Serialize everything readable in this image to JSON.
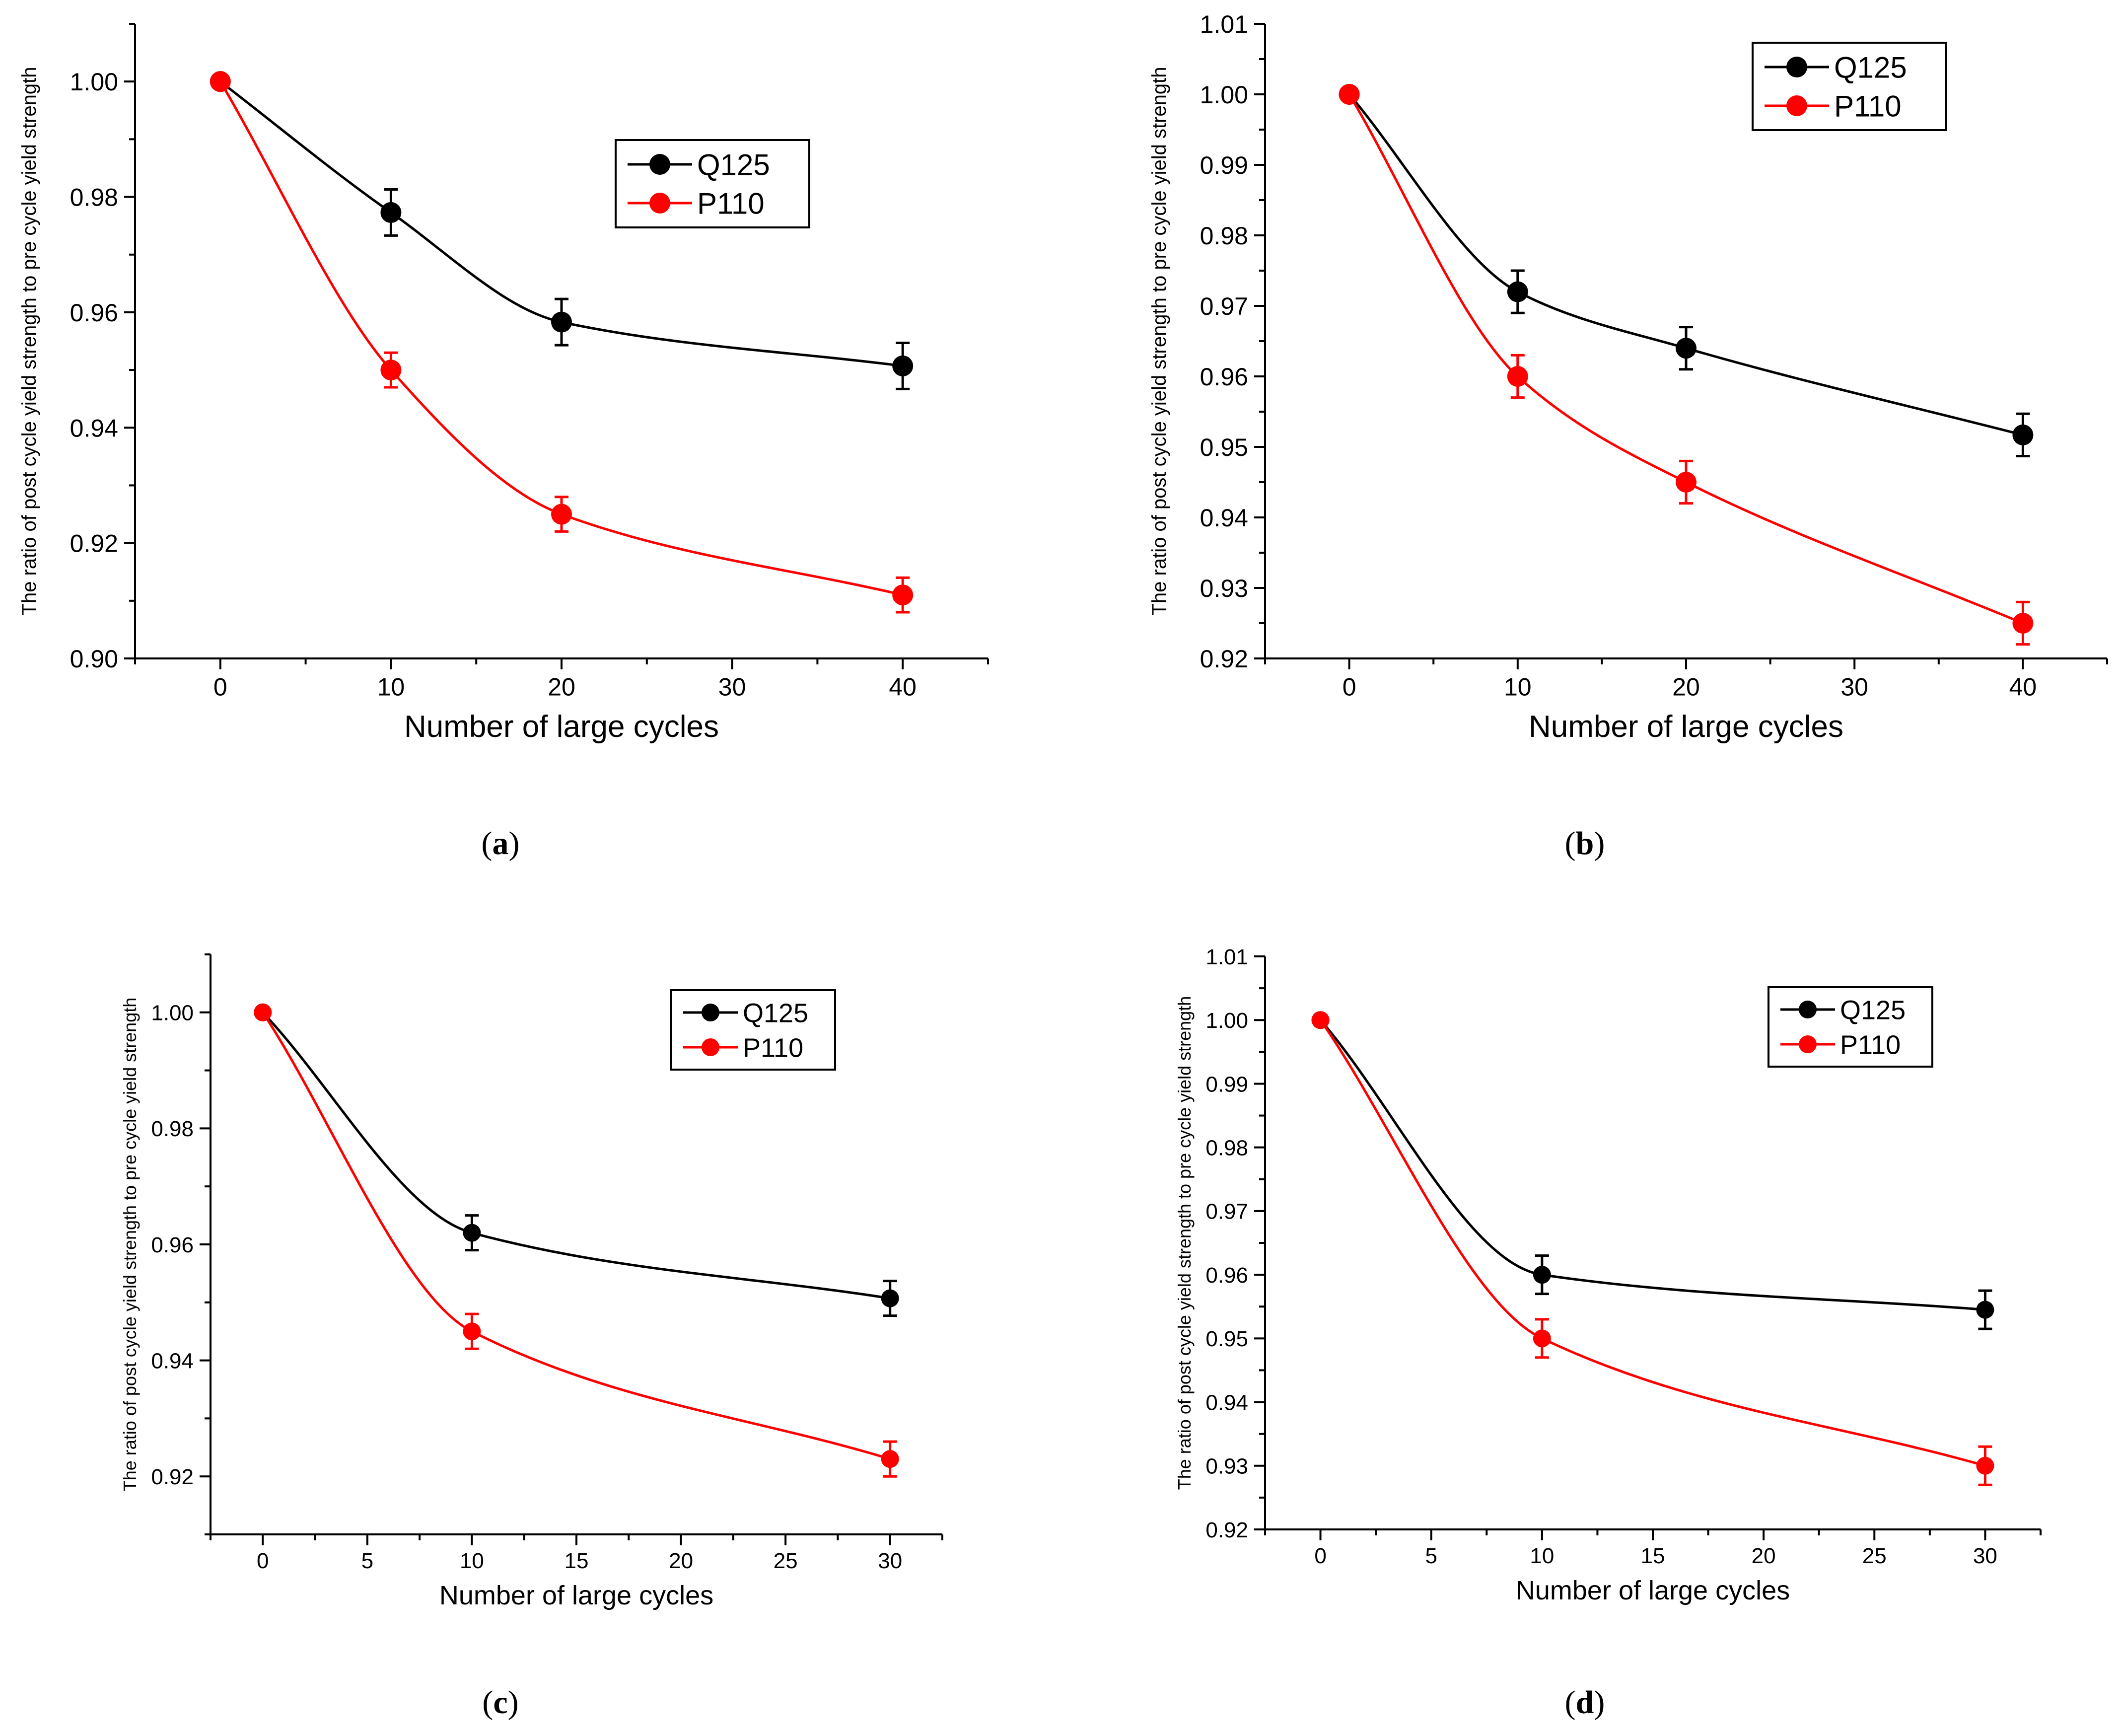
{
  "figure": {
    "panels": [
      {
        "caption": {
          "open": "(",
          "letter": "a",
          "close": ")"
        }
      },
      {
        "caption": {
          "open": "(",
          "letter": "b",
          "close": ")"
        }
      },
      {
        "caption": {
          "open": "(",
          "letter": "c",
          "close": ")"
        }
      },
      {
        "caption": {
          "open": "(",
          "letter": "d",
          "close": ")"
        }
      }
    ]
  },
  "chart_data": [
    {
      "type": "line",
      "xlabel": "Number of large cycles",
      "ylabel": "The ratio of post cycle yield strength to pre cycle  yield strength",
      "xlim": [
        -5,
        45
      ],
      "ylim": [
        0.9,
        1.01
      ],
      "xticks": [
        0,
        10,
        20,
        30,
        40
      ],
      "yticks": [
        0.9,
        0.92,
        0.94,
        0.96,
        0.98,
        1.0
      ],
      "ytick_decimals": 2,
      "legend": "upper-right",
      "series": [
        {
          "name": "Q125",
          "color": "#000000",
          "x": [
            0,
            10,
            20,
            40
          ],
          "y": [
            1.0,
            0.9773,
            0.9583,
            0.9507
          ],
          "err": [
            0,
            0.004,
            0.004,
            0.004
          ]
        },
        {
          "name": "P110",
          "color": "#ff0000",
          "x": [
            0,
            10,
            20,
            40
          ],
          "y": [
            1.0,
            0.95,
            0.925,
            0.911
          ],
          "err": [
            0,
            0.003,
            0.003,
            0.003
          ]
        }
      ]
    },
    {
      "type": "line",
      "xlabel": "Number of large cycles",
      "ylabel": "The ratio of post cycle yield strength to pre cycle  yield strength",
      "xlim": [
        -5,
        45
      ],
      "ylim": [
        0.92,
        1.01
      ],
      "xticks": [
        0,
        10,
        20,
        30,
        40
      ],
      "yticks": [
        0.92,
        0.93,
        0.94,
        0.95,
        0.96,
        0.97,
        0.98,
        0.99,
        1.0,
        1.01
      ],
      "ytick_decimals": 2,
      "legend": "top-right",
      "series": [
        {
          "name": "Q125",
          "color": "#000000",
          "x": [
            0,
            10,
            20,
            40
          ],
          "y": [
            1.0,
            0.972,
            0.964,
            0.9517
          ],
          "err": [
            0,
            0.003,
            0.003,
            0.003
          ]
        },
        {
          "name": "P110",
          "color": "#ff0000",
          "x": [
            0,
            10,
            20,
            40
          ],
          "y": [
            1.0,
            0.96,
            0.945,
            0.925
          ],
          "err": [
            0,
            0.003,
            0.003,
            0.003
          ]
        }
      ]
    },
    {
      "type": "line",
      "xlabel": "Number of large cycles",
      "ylabel": "The ratio of post cycle yield strength to pre cycle  yield strength",
      "xlim": [
        -2.5,
        32.5
      ],
      "ylim": [
        0.91,
        1.01
      ],
      "xticks": [
        0,
        5,
        10,
        15,
        20,
        25,
        30
      ],
      "yticks": [
        0.92,
        0.94,
        0.96,
        0.98,
        1.0
      ],
      "ytick_decimals": 2,
      "legend": "top-right",
      "series": [
        {
          "name": "Q125",
          "color": "#000000",
          "x": [
            0,
            10,
            30
          ],
          "y": [
            1.0,
            0.962,
            0.9507
          ],
          "err": [
            0,
            0.003,
            0.003
          ]
        },
        {
          "name": "P110",
          "color": "#ff0000",
          "x": [
            0,
            10,
            30
          ],
          "y": [
            1.0,
            0.945,
            0.923
          ],
          "err": [
            0,
            0.003,
            0.003
          ]
        }
      ]
    },
    {
      "type": "line",
      "xlabel": "Number of large cycles",
      "ylabel": "The ratio of post cycle yield strength to pre cycle  yield strength",
      "xlim": [
        -2.5,
        32.5
      ],
      "ylim": [
        0.92,
        1.01
      ],
      "xticks": [
        0,
        5,
        10,
        15,
        20,
        25,
        30
      ],
      "yticks": [
        0.92,
        0.93,
        0.94,
        0.95,
        0.96,
        0.97,
        0.98,
        0.99,
        1.0,
        1.01
      ],
      "ytick_decimals": 2,
      "legend": "top-right",
      "series": [
        {
          "name": "Q125",
          "color": "#000000",
          "x": [
            0,
            10,
            30
          ],
          "y": [
            1.0,
            0.96,
            0.9545
          ],
          "err": [
            0,
            0.003,
            0.003
          ]
        },
        {
          "name": "P110",
          "color": "#ff0000",
          "x": [
            0,
            10,
            30
          ],
          "y": [
            1.0,
            0.95,
            0.93
          ],
          "err": [
            0,
            0.003,
            0.003
          ]
        }
      ]
    }
  ]
}
